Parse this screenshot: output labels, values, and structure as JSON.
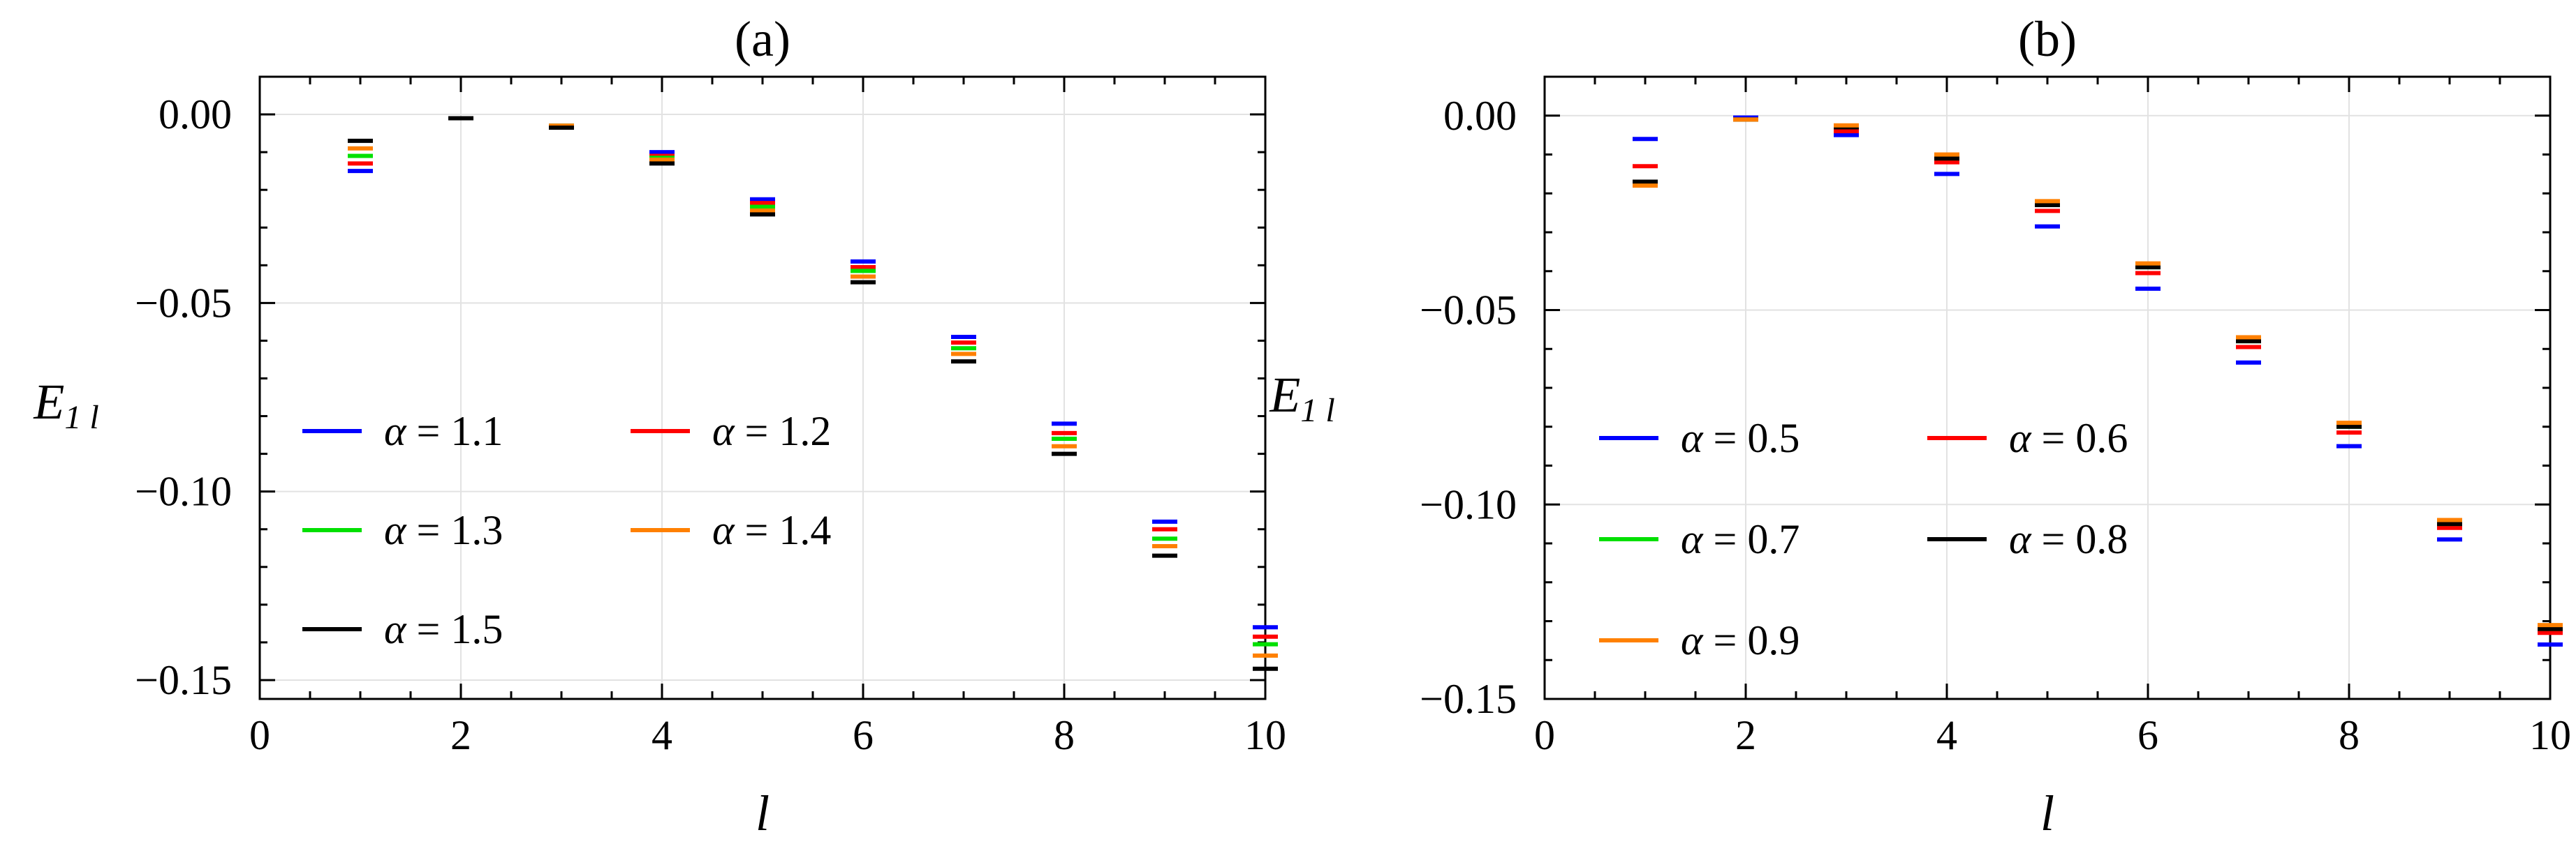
{
  "chart_data": [
    {
      "type": "scatter",
      "marker": "horizontal dash",
      "title": "(a)",
      "xlabel": "l",
      "ylabel": "E",
      "ylabel_sub": "1 l",
      "xlim": [
        0,
        10
      ],
      "ylim": [
        -0.155,
        0.01
      ],
      "xticks": [
        0,
        2,
        4,
        6,
        8,
        10
      ],
      "xtick_labels": [
        "0",
        "2",
        "4",
        "6",
        "8",
        "10"
      ],
      "yticks": [
        0.0,
        -0.05,
        -0.1,
        -0.15
      ],
      "ytick_labels": [
        "0.00",
        "−0.05",
        "−0.10",
        "−0.15"
      ],
      "grid": true,
      "legend_position": "bottom-left, two columns",
      "x": [
        1,
        2,
        3,
        4,
        5,
        6,
        7,
        8,
        9,
        10
      ],
      "series": [
        {
          "name": "α = 1.1",
          "color": "#0000ff",
          "values": [
            -0.015,
            -0.001,
            -0.003,
            -0.01,
            -0.0225,
            -0.039,
            -0.059,
            -0.082,
            -0.108,
            -0.136
          ]
        },
        {
          "name": "α = 1.2",
          "color": "#ff0000",
          "values": [
            -0.013,
            -0.001,
            -0.003,
            -0.011,
            -0.0235,
            -0.0405,
            -0.0605,
            -0.0845,
            -0.11,
            -0.1385
          ]
        },
        {
          "name": "α = 1.3",
          "color": "#00e000",
          "values": [
            -0.011,
            -0.001,
            -0.003,
            -0.0115,
            -0.0245,
            -0.0415,
            -0.062,
            -0.086,
            -0.1125,
            -0.1405
          ]
        },
        {
          "name": "α = 1.4",
          "color": "#ff8000",
          "values": [
            -0.009,
            -0.001,
            -0.003,
            -0.012,
            -0.0255,
            -0.043,
            -0.0635,
            -0.088,
            -0.1145,
            -0.1435
          ]
        },
        {
          "name": "α = 1.5",
          "color": "#000000",
          "values": [
            -0.007,
            -0.001,
            -0.0035,
            -0.013,
            -0.0265,
            -0.0445,
            -0.0655,
            -0.09,
            -0.117,
            -0.147
          ]
        }
      ]
    },
    {
      "type": "scatter",
      "marker": "horizontal dash",
      "title": "(b)",
      "xlabel": "l",
      "ylabel": "E",
      "ylabel_sub": "1 l",
      "xlim": [
        0,
        10
      ],
      "ylim": [
        -0.15,
        0.01
      ],
      "xticks": [
        0,
        2,
        4,
        6,
        8,
        10
      ],
      "xtick_labels": [
        "0",
        "2",
        "4",
        "6",
        "8",
        "10"
      ],
      "yticks": [
        0.0,
        -0.05,
        -0.1,
        -0.15
      ],
      "ytick_labels": [
        "0.00",
        "−0.05",
        "−0.10",
        "−0.15"
      ],
      "grid": true,
      "legend_position": "bottom-left, two columns",
      "x": [
        1,
        2,
        3,
        4,
        5,
        6,
        7,
        8,
        9,
        10
      ],
      "series": [
        {
          "name": "α = 0.5",
          "color": "#0000ff",
          "values": [
            -0.006,
            -0.0005,
            -0.005,
            -0.015,
            -0.0285,
            -0.0445,
            -0.0635,
            -0.085,
            -0.109,
            -0.136
          ]
        },
        {
          "name": "α = 0.6",
          "color": "#ff0000",
          "values": [
            -0.013,
            -0.001,
            -0.004,
            -0.012,
            -0.0245,
            -0.0405,
            -0.0595,
            -0.0815,
            -0.106,
            -0.133
          ]
        },
        {
          "name": "α = 0.7",
          "color": "#00e000",
          "values": [
            -0.017,
            -0.001,
            -0.003,
            -0.011,
            -0.023,
            -0.039,
            -0.058,
            -0.08,
            -0.105,
            -0.132
          ]
        },
        {
          "name": "α = 0.8",
          "color": "#000000",
          "values": [
            -0.017,
            -0.001,
            -0.003,
            -0.011,
            -0.023,
            -0.039,
            -0.058,
            -0.08,
            -0.105,
            -0.132
          ]
        },
        {
          "name": "α = 0.9",
          "color": "#ff8000",
          "values": [
            -0.018,
            -0.001,
            -0.0025,
            -0.01,
            -0.022,
            -0.038,
            -0.057,
            -0.079,
            -0.104,
            -0.131
          ]
        }
      ]
    }
  ]
}
